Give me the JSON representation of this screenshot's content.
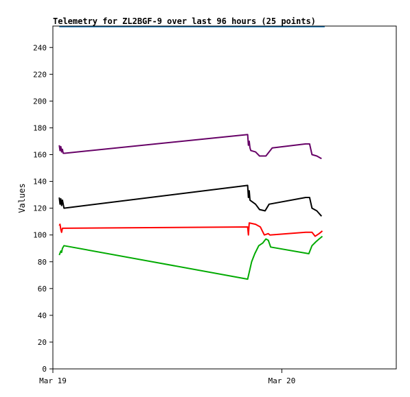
{
  "chart_data": {
    "type": "line",
    "title": "Telemetry for ZL2BGF-9 over last 96 hours (25 points)",
    "xlabel": "",
    "ylabel": "Values",
    "ylim": [
      0,
      256
    ],
    "yticks": [
      0,
      20,
      40,
      60,
      80,
      100,
      120,
      140,
      160,
      180,
      200,
      220,
      240
    ],
    "x_range": [
      "2025-03-19 00:00",
      "2025-03-20 12:00"
    ],
    "xticks": [
      {
        "label": "Mar 19",
        "x": "2025-03-19 00:00"
      },
      {
        "label": "Mar 20",
        "x": "2025-03-20 00:00"
      }
    ],
    "grid": false,
    "series": [
      {
        "color": "#0066aa",
        "points": [
          [
            "2025-03-19 00:40",
            255.6
          ],
          [
            "2025-03-20 04:30",
            255.6
          ]
        ]
      },
      {
        "color": "#660066",
        "points": [
          [
            "2025-03-19 00:40",
            167
          ],
          [
            "2025-03-19 00:45",
            163
          ],
          [
            "2025-03-19 00:50",
            166
          ],
          [
            "2025-03-19 00:55",
            162
          ],
          [
            "2025-03-19 01:00",
            164
          ],
          [
            "2025-03-19 01:05",
            161
          ],
          [
            "2025-03-19 01:15",
            161
          ],
          [
            "2025-03-19 20:25",
            175
          ],
          [
            "2025-03-19 20:30",
            167
          ],
          [
            "2025-03-19 20:35",
            170
          ],
          [
            "2025-03-19 20:40",
            165
          ],
          [
            "2025-03-19 20:45",
            163
          ],
          [
            "2025-03-19 21:15",
            162
          ],
          [
            "2025-03-19 21:40",
            159
          ],
          [
            "2025-03-19 22:20",
            159
          ],
          [
            "2025-03-19 23:00",
            165
          ],
          [
            "2025-03-20 02:30",
            168
          ],
          [
            "2025-03-20 02:55",
            168
          ],
          [
            "2025-03-20 03:10",
            160
          ],
          [
            "2025-03-20 03:40",
            159
          ],
          [
            "2025-03-20 04:10",
            157
          ]
        ]
      },
      {
        "color": "#000000",
        "points": [
          [
            "2025-03-19 00:40",
            128
          ],
          [
            "2025-03-19 00:45",
            123
          ],
          [
            "2025-03-19 00:50",
            127
          ],
          [
            "2025-03-19 00:55",
            122
          ],
          [
            "2025-03-19 01:00",
            126
          ],
          [
            "2025-03-19 01:10",
            120
          ],
          [
            "2025-03-19 20:25",
            137
          ],
          [
            "2025-03-19 20:30",
            128
          ],
          [
            "2025-03-19 20:35",
            133
          ],
          [
            "2025-03-19 20:40",
            126
          ],
          [
            "2025-03-19 21:15",
            123
          ],
          [
            "2025-03-19 21:40",
            119
          ],
          [
            "2025-03-19 22:15",
            118
          ],
          [
            "2025-03-19 22:40",
            123
          ],
          [
            "2025-03-20 02:30",
            128
          ],
          [
            "2025-03-20 02:55",
            128
          ],
          [
            "2025-03-20 03:10",
            120
          ],
          [
            "2025-03-20 03:40",
            118
          ],
          [
            "2025-03-20 04:10",
            114
          ]
        ]
      },
      {
        "color": "#ff0000",
        "points": [
          [
            "2025-03-19 00:40",
            107
          ],
          [
            "2025-03-19 00:45",
            108
          ],
          [
            "2025-03-19 00:50",
            104
          ],
          [
            "2025-03-19 00:55",
            102
          ],
          [
            "2025-03-19 01:00",
            105
          ],
          [
            "2025-03-19 20:25",
            106
          ],
          [
            "2025-03-19 20:30",
            100
          ],
          [
            "2025-03-19 20:35",
            109
          ],
          [
            "2025-03-19 21:15",
            108
          ],
          [
            "2025-03-19 21:45",
            106
          ],
          [
            "2025-03-19 22:10",
            100
          ],
          [
            "2025-03-19 22:35",
            101
          ],
          [
            "2025-03-19 22:45",
            100
          ],
          [
            "2025-03-20 02:30",
            102
          ],
          [
            "2025-03-20 03:10",
            102
          ],
          [
            "2025-03-20 03:30",
            99
          ],
          [
            "2025-03-20 03:55",
            101
          ],
          [
            "2025-03-20 04:15",
            103
          ]
        ]
      },
      {
        "color": "#00aa00",
        "points": [
          [
            "2025-03-19 00:40",
            85
          ],
          [
            "2025-03-19 00:50",
            88
          ],
          [
            "2025-03-19 00:55",
            87
          ],
          [
            "2025-03-19 01:00",
            90
          ],
          [
            "2025-03-19 01:10",
            92
          ],
          [
            "2025-03-19 20:25",
            67
          ],
          [
            "2025-03-19 20:50",
            80
          ],
          [
            "2025-03-19 21:10",
            86
          ],
          [
            "2025-03-19 21:35",
            92
          ],
          [
            "2025-03-19 22:00",
            94
          ],
          [
            "2025-03-19 22:20",
            97
          ],
          [
            "2025-03-19 22:35",
            96
          ],
          [
            "2025-03-19 22:50",
            91
          ],
          [
            "2025-03-20 02:50",
            86
          ],
          [
            "2025-03-20 03:10",
            92
          ],
          [
            "2025-03-20 03:35",
            95
          ],
          [
            "2025-03-20 03:55",
            97
          ],
          [
            "2025-03-20 04:15",
            99
          ]
        ]
      }
    ]
  }
}
